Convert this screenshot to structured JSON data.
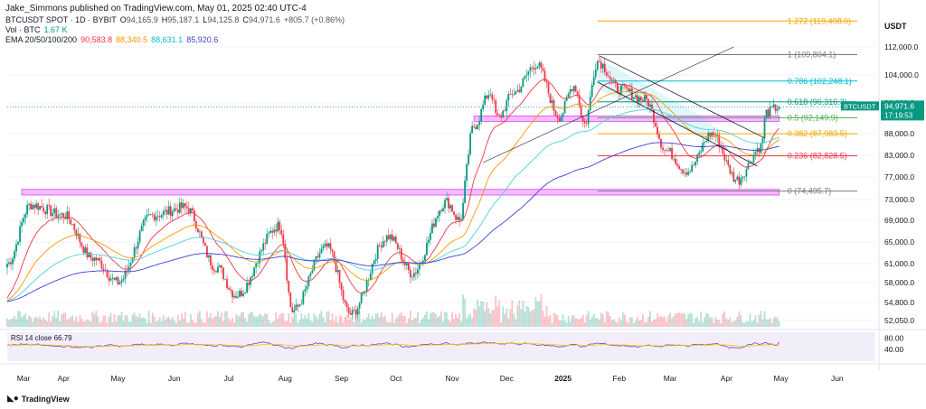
{
  "header": {
    "publisher": "Jake_Simmons published on TradingView.com, May 01, 2025 02:40 UTC-4",
    "symbol": "BTCUSDT SPOT · 1D · BYBIT",
    "ohlc": {
      "o_label": "O",
      "o": "94,165.9",
      "h_label": "H",
      "h": "95,187.1",
      "l_label": "L",
      "l": "94,125.8",
      "c_label": "C",
      "c": "94,971.6",
      "change": "+805.7 (+0.86%)"
    },
    "vol": {
      "label": "Vol · BTC",
      "value": "1.67 K"
    },
    "ema": {
      "label": "EMA 20/50/100/200",
      "v20": "90,583.8",
      "v50": "88,340.5",
      "v100": "88,631.1",
      "v200": "85,920.6"
    },
    "rsi": {
      "label": "RSI 14 close",
      "value": "66.79"
    }
  },
  "axis": {
    "currency": "USDT",
    "price_ticks": [
      "112,000.0",
      "104,000.0",
      "96,000.0",
      "88,000.0",
      "83,000.0",
      "77,000.0",
      "73,000.0",
      "69,000.0",
      "65,000.0",
      "61,000.0",
      "58,000.0",
      "54,800.0",
      "52,050.0"
    ],
    "rsi_ticks": [
      "80.00",
      "40.00"
    ],
    "months": [
      "Mar",
      "Apr",
      "May",
      "Jun",
      "Jul",
      "Aug",
      "Sep",
      "Oct",
      "Nov",
      "Dec",
      "2025",
      "Feb",
      "Mar",
      "Apr",
      "May",
      "Jun"
    ]
  },
  "last_price": {
    "label": "BTCUSDT",
    "value": "94,971.6",
    "timer": "17:19:53"
  },
  "fib_levels": [
    {
      "text": "1.272 (119,408.0)",
      "color": "#f7a600"
    },
    {
      "text": "1 (109,804.1)",
      "color": "#787b86"
    },
    {
      "text": "0.786 (102,248.1)",
      "color": "#00bcd4"
    },
    {
      "text": "0.618 (96,316.3)",
      "color": "#089981"
    },
    {
      "text": "0.5 (92,149.9)",
      "color": "#4caf50"
    },
    {
      "text": "0.382 (87,983.5)",
      "color": "#f7a600"
    },
    {
      "text": "0.236 (82,828.5)",
      "color": "#f23645"
    },
    {
      "text": "0 (74,495.7)",
      "color": "#787b86"
    }
  ],
  "colors": {
    "up": "#089981",
    "down": "#f23645",
    "ema20": "#f23645",
    "ema50": "#ff9800",
    "ema100": "#4dd0e1",
    "ema200": "#3f3fd6",
    "rsi": "#7e57c2",
    "rsi_ma": "#f7c600",
    "zone": "#e040fb",
    "last": "#089981"
  },
  "brand": {
    "text": "TradingView",
    "logo": "tv-logo-icon"
  },
  "chart_data": {
    "type": "candlestick",
    "x_start": "2024-03-01",
    "x_end": "2025-04-30",
    "close_anchors": [
      [
        "2024-03-01",
        61000
      ],
      [
        "2024-03-14",
        72000
      ],
      [
        "2024-04-01",
        70000
      ],
      [
        "2024-04-17",
        62000
      ],
      [
        "2024-05-01",
        58000
      ],
      [
        "2024-05-20",
        70000
      ],
      [
        "2024-06-07",
        71500
      ],
      [
        "2024-06-24",
        60500
      ],
      [
        "2024-07-05",
        56000
      ],
      [
        "2024-07-29",
        68000
      ],
      [
        "2024-08-05",
        53500
      ],
      [
        "2024-08-24",
        64000
      ],
      [
        "2024-09-06",
        53000
      ],
      [
        "2024-09-27",
        66000
      ],
      [
        "2024-10-10",
        59500
      ],
      [
        "2024-10-29",
        72500
      ],
      [
        "2024-11-05",
        69000
      ],
      [
        "2024-11-13",
        90000
      ],
      [
        "2024-11-22",
        99000
      ],
      [
        "2024-11-26",
        92000
      ],
      [
        "2024-12-05",
        99000
      ],
      [
        "2024-12-17",
        107000
      ],
      [
        "2024-12-30",
        92500
      ],
      [
        "2025-01-07",
        101000
      ],
      [
        "2025-01-13",
        90500
      ],
      [
        "2025-01-20",
        108000
      ],
      [
        "2025-02-01",
        100000
      ],
      [
        "2025-02-15",
        97000
      ],
      [
        "2025-02-27",
        84000
      ],
      [
        "2025-03-10",
        78500
      ],
      [
        "2025-03-24",
        88000
      ],
      [
        "2025-04-07",
        76500
      ],
      [
        "2025-04-20",
        85000
      ],
      [
        "2025-04-23",
        93500
      ],
      [
        "2025-04-30",
        94971.6
      ]
    ],
    "price_axis": {
      "min": 50000,
      "max": 122000
    },
    "rsi_range": [
      0,
      100
    ],
    "rsi_last": 66.79,
    "resistance_zone": [
      91200,
      92600
    ],
    "support_zone": [
      73800,
      74800
    ]
  }
}
